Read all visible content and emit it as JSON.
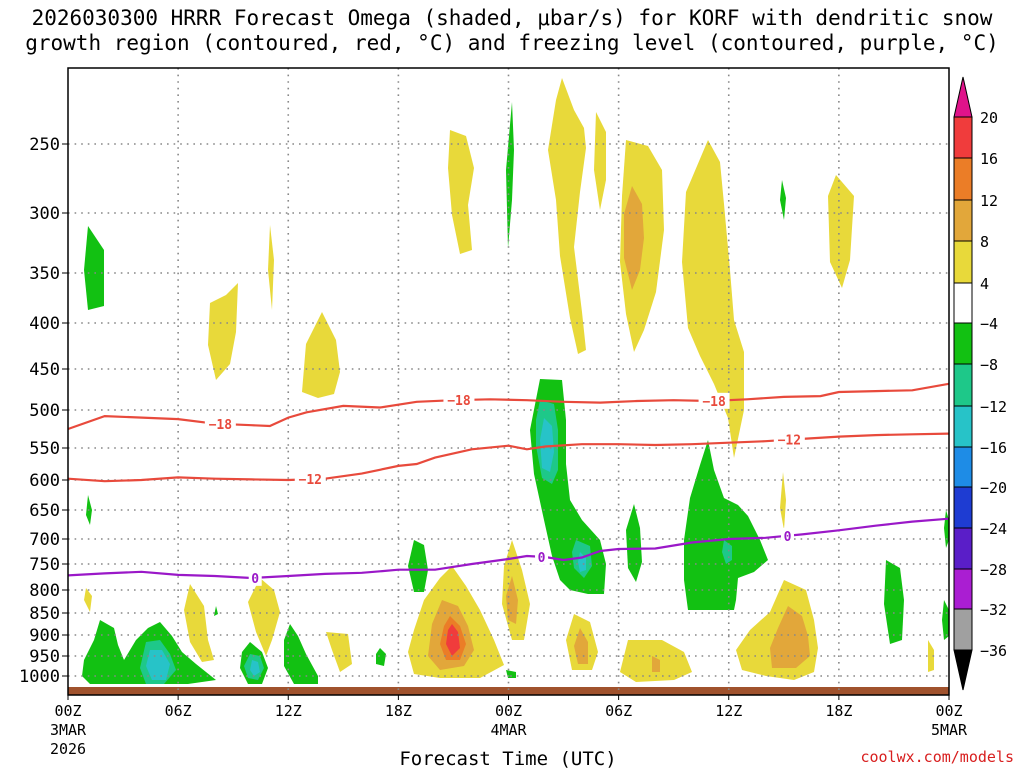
{
  "title_line1": "2026030300 HRRR Forecast Omega (shaded, μbar/s) for KORF with dendritic snow",
  "title_line2": "growth region (contoured, red, °C) and freezing level (contoured, purple, °C)",
  "credit": "coolwx.com/models",
  "chart_data": {
    "type": "heatmap",
    "title": "2026030300 HRRR Forecast Omega (shaded, μbar/s) for KORF with dendritic snow growth region (contoured, red, °C) and freezing level (contoured, purple, °C)",
    "xlabel": "Forecast Time (UTC)",
    "x_range_hours": [
      0,
      48
    ],
    "y_range_hpa": [
      1050,
      190
    ],
    "x_ticks": [
      {
        "hour": 0,
        "label": "00Z",
        "date": "3MAR",
        "year": "2026"
      },
      {
        "hour": 6,
        "label": "06Z"
      },
      {
        "hour": 12,
        "label": "12Z"
      },
      {
        "hour": 18,
        "label": "18Z"
      },
      {
        "hour": 24,
        "label": "00Z",
        "date": "4MAR"
      },
      {
        "hour": 30,
        "label": "06Z"
      },
      {
        "hour": 36,
        "label": "12Z"
      },
      {
        "hour": 42,
        "label": "18Z"
      },
      {
        "hour": 48,
        "label": "00Z",
        "date": "5MAR"
      }
    ],
    "y_ticks": [
      250,
      300,
      350,
      400,
      450,
      500,
      550,
      600,
      650,
      700,
      750,
      800,
      850,
      900,
      950,
      1000
    ],
    "colorbar": {
      "labels": [
        "20",
        "16",
        "12",
        "8",
        "4",
        "−4",
        "−8",
        "−12",
        "−16",
        "−20",
        "−24",
        "−28",
        "−32",
        "−36"
      ],
      "bands": [
        {
          "from": 20,
          "color": "#e0138a"
        },
        {
          "from": 16,
          "to": 20,
          "color": "#f03c3c"
        },
        {
          "from": 12,
          "to": 16,
          "color": "#eb7d27"
        },
        {
          "from": 8,
          "to": 12,
          "color": "#e2a73a"
        },
        {
          "from": 4,
          "to": 8,
          "color": "#e8d93a"
        },
        {
          "from": -4,
          "to": 4,
          "color": "#ffffff"
        },
        {
          "from": -8,
          "to": -4,
          "color": "#12c112"
        },
        {
          "from": -12,
          "to": -8,
          "color": "#1ec889"
        },
        {
          "from": -16,
          "to": -12,
          "color": "#27c3c8"
        },
        {
          "from": -20,
          "to": -16,
          "color": "#1e8ce6"
        },
        {
          "from": -24,
          "to": -20,
          "color": "#1e3cd2"
        },
        {
          "from": -28,
          "to": -24,
          "color": "#5a1ec8"
        },
        {
          "from": -32,
          "to": -28,
          "color": "#aa1ed2"
        },
        {
          "from": -36,
          "to": -32,
          "color": "#a0a0a0"
        },
        {
          "to": -36,
          "color": "#000000"
        }
      ]
    },
    "contours": [
      {
        "name": "-18",
        "color": "#e84a3c",
        "points": [
          [
            0,
            525
          ],
          [
            2,
            508
          ],
          [
            6,
            512
          ],
          [
            8,
            518
          ],
          [
            10,
            520
          ],
          [
            11,
            521
          ],
          [
            12,
            510
          ],
          [
            13,
            503
          ],
          [
            15,
            495
          ],
          [
            17,
            497
          ],
          [
            19,
            490
          ],
          [
            21,
            488
          ],
          [
            23,
            487
          ],
          [
            25,
            488
          ],
          [
            27,
            490
          ],
          [
            29,
            491
          ],
          [
            31,
            489
          ],
          [
            33,
            488
          ],
          [
            35,
            489
          ],
          [
            37,
            487
          ],
          [
            39,
            484
          ],
          [
            41,
            483
          ],
          [
            42,
            478
          ],
          [
            44,
            477
          ],
          [
            46,
            476
          ],
          [
            48,
            468
          ]
        ],
        "labels": [
          {
            "x": 8.3,
            "text": "−18"
          },
          {
            "x": 21.3,
            "text": "−18"
          },
          {
            "x": 35.2,
            "text": "−18"
          }
        ]
      },
      {
        "name": "-12",
        "color": "#e84a3c",
        "points": [
          [
            0,
            598
          ],
          [
            2,
            602
          ],
          [
            4,
            600
          ],
          [
            6,
            596
          ],
          [
            8,
            598
          ],
          [
            10,
            599
          ],
          [
            12,
            600
          ],
          [
            14,
            598
          ],
          [
            16,
            590
          ],
          [
            18,
            578
          ],
          [
            19,
            575
          ],
          [
            20,
            565
          ],
          [
            22,
            552
          ],
          [
            24,
            547
          ],
          [
            25,
            552
          ],
          [
            26,
            548
          ],
          [
            28,
            545
          ],
          [
            30,
            545
          ],
          [
            32,
            546
          ],
          [
            34,
            545
          ],
          [
            36,
            543
          ],
          [
            38,
            541
          ],
          [
            40,
            538
          ],
          [
            42,
            535
          ],
          [
            44,
            533
          ],
          [
            46,
            532
          ],
          [
            48,
            531
          ]
        ],
        "labels": [
          {
            "x": 13.2,
            "text": "−12"
          },
          {
            "x": 39.3,
            "text": "−12"
          }
        ]
      },
      {
        "name": "0",
        "color": "#9a18c8",
        "points": [
          [
            0,
            772
          ],
          [
            2,
            768
          ],
          [
            4,
            765
          ],
          [
            6,
            771
          ],
          [
            8,
            773
          ],
          [
            10,
            777
          ],
          [
            12,
            773
          ],
          [
            14,
            769
          ],
          [
            16,
            767
          ],
          [
            17,
            764
          ],
          [
            18,
            761
          ],
          [
            20,
            761
          ],
          [
            22,
            750
          ],
          [
            24,
            740
          ],
          [
            25,
            734
          ],
          [
            26,
            736
          ],
          [
            27,
            742
          ],
          [
            28,
            737
          ],
          [
            29,
            724
          ],
          [
            30,
            720
          ],
          [
            32,
            719
          ],
          [
            34,
            707
          ],
          [
            36,
            700
          ],
          [
            38,
            698
          ],
          [
            40,
            692
          ],
          [
            42,
            685
          ],
          [
            44,
            677
          ],
          [
            46,
            670
          ],
          [
            48,
            665
          ]
        ],
        "labels": [
          {
            "x": 10.2,
            "text": "0"
          },
          {
            "x": 25.8,
            "text": "0"
          },
          {
            "x": 39.2,
            "text": "0"
          }
        ]
      }
    ]
  }
}
